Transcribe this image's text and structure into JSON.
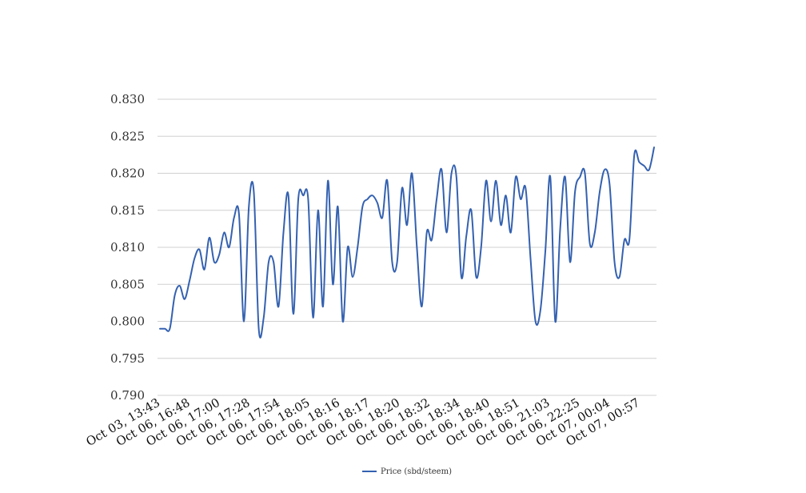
{
  "chart_data": {
    "type": "line",
    "title": "",
    "xlabel": "",
    "ylabel": "",
    "ylim": [
      0.79,
      0.83
    ],
    "y_ticks": [
      "0.790",
      "0.795",
      "0.800",
      "0.805",
      "0.810",
      "0.815",
      "0.820",
      "0.825",
      "0.830"
    ],
    "x_tick_labels": [
      "Oct 03, 13:43",
      "Oct 06, 16:48",
      "Oct 06, 17:00",
      "Oct 06, 17:28",
      "Oct 06, 17:54",
      "Oct 06, 18:05",
      "Oct 06, 18:16",
      "Oct 06, 18:17",
      "Oct 06, 18:20",
      "Oct 06, 18:32",
      "Oct 06, 18:34",
      "Oct 06, 18:40",
      "Oct 06, 18:51",
      "Oct 06, 21:03",
      "Oct 06, 22:25",
      "Oct 07, 00:04",
      "Oct 07, 00:57"
    ],
    "grid": true,
    "legend_position": "bottom-center",
    "series": [
      {
        "name": "Price (sbd/steem)",
        "color": "#3461b0",
        "values": [
          0.799,
          0.799,
          0.799,
          0.8035,
          0.8048,
          0.803,
          0.8055,
          0.8085,
          0.8097,
          0.807,
          0.8113,
          0.808,
          0.809,
          0.812,
          0.81,
          0.814,
          0.8145,
          0.8,
          0.8155,
          0.8175,
          0.799,
          0.8005,
          0.808,
          0.808,
          0.802,
          0.812,
          0.817,
          0.801,
          0.8165,
          0.817,
          0.8165,
          0.8005,
          0.815,
          0.802,
          0.819,
          0.805,
          0.8155,
          0.8,
          0.81,
          0.806,
          0.81,
          0.8155,
          0.8165,
          0.817,
          0.816,
          0.814,
          0.819,
          0.808,
          0.808,
          0.818,
          0.813,
          0.82,
          0.81,
          0.802,
          0.812,
          0.811,
          0.8165,
          0.8205,
          0.812,
          0.82,
          0.8195,
          0.806,
          0.8115,
          0.815,
          0.806,
          0.81,
          0.819,
          0.8135,
          0.819,
          0.813,
          0.817,
          0.812,
          0.8195,
          0.8165,
          0.818,
          0.8085,
          0.8,
          0.8015,
          0.8095,
          0.8195,
          0.8,
          0.8125,
          0.8195,
          0.808,
          0.8175,
          0.8195,
          0.82,
          0.8105,
          0.812,
          0.8175,
          0.8205,
          0.8185,
          0.808,
          0.806,
          0.811,
          0.811,
          0.8225,
          0.8215,
          0.821,
          0.8205,
          0.8235
        ]
      }
    ]
  }
}
